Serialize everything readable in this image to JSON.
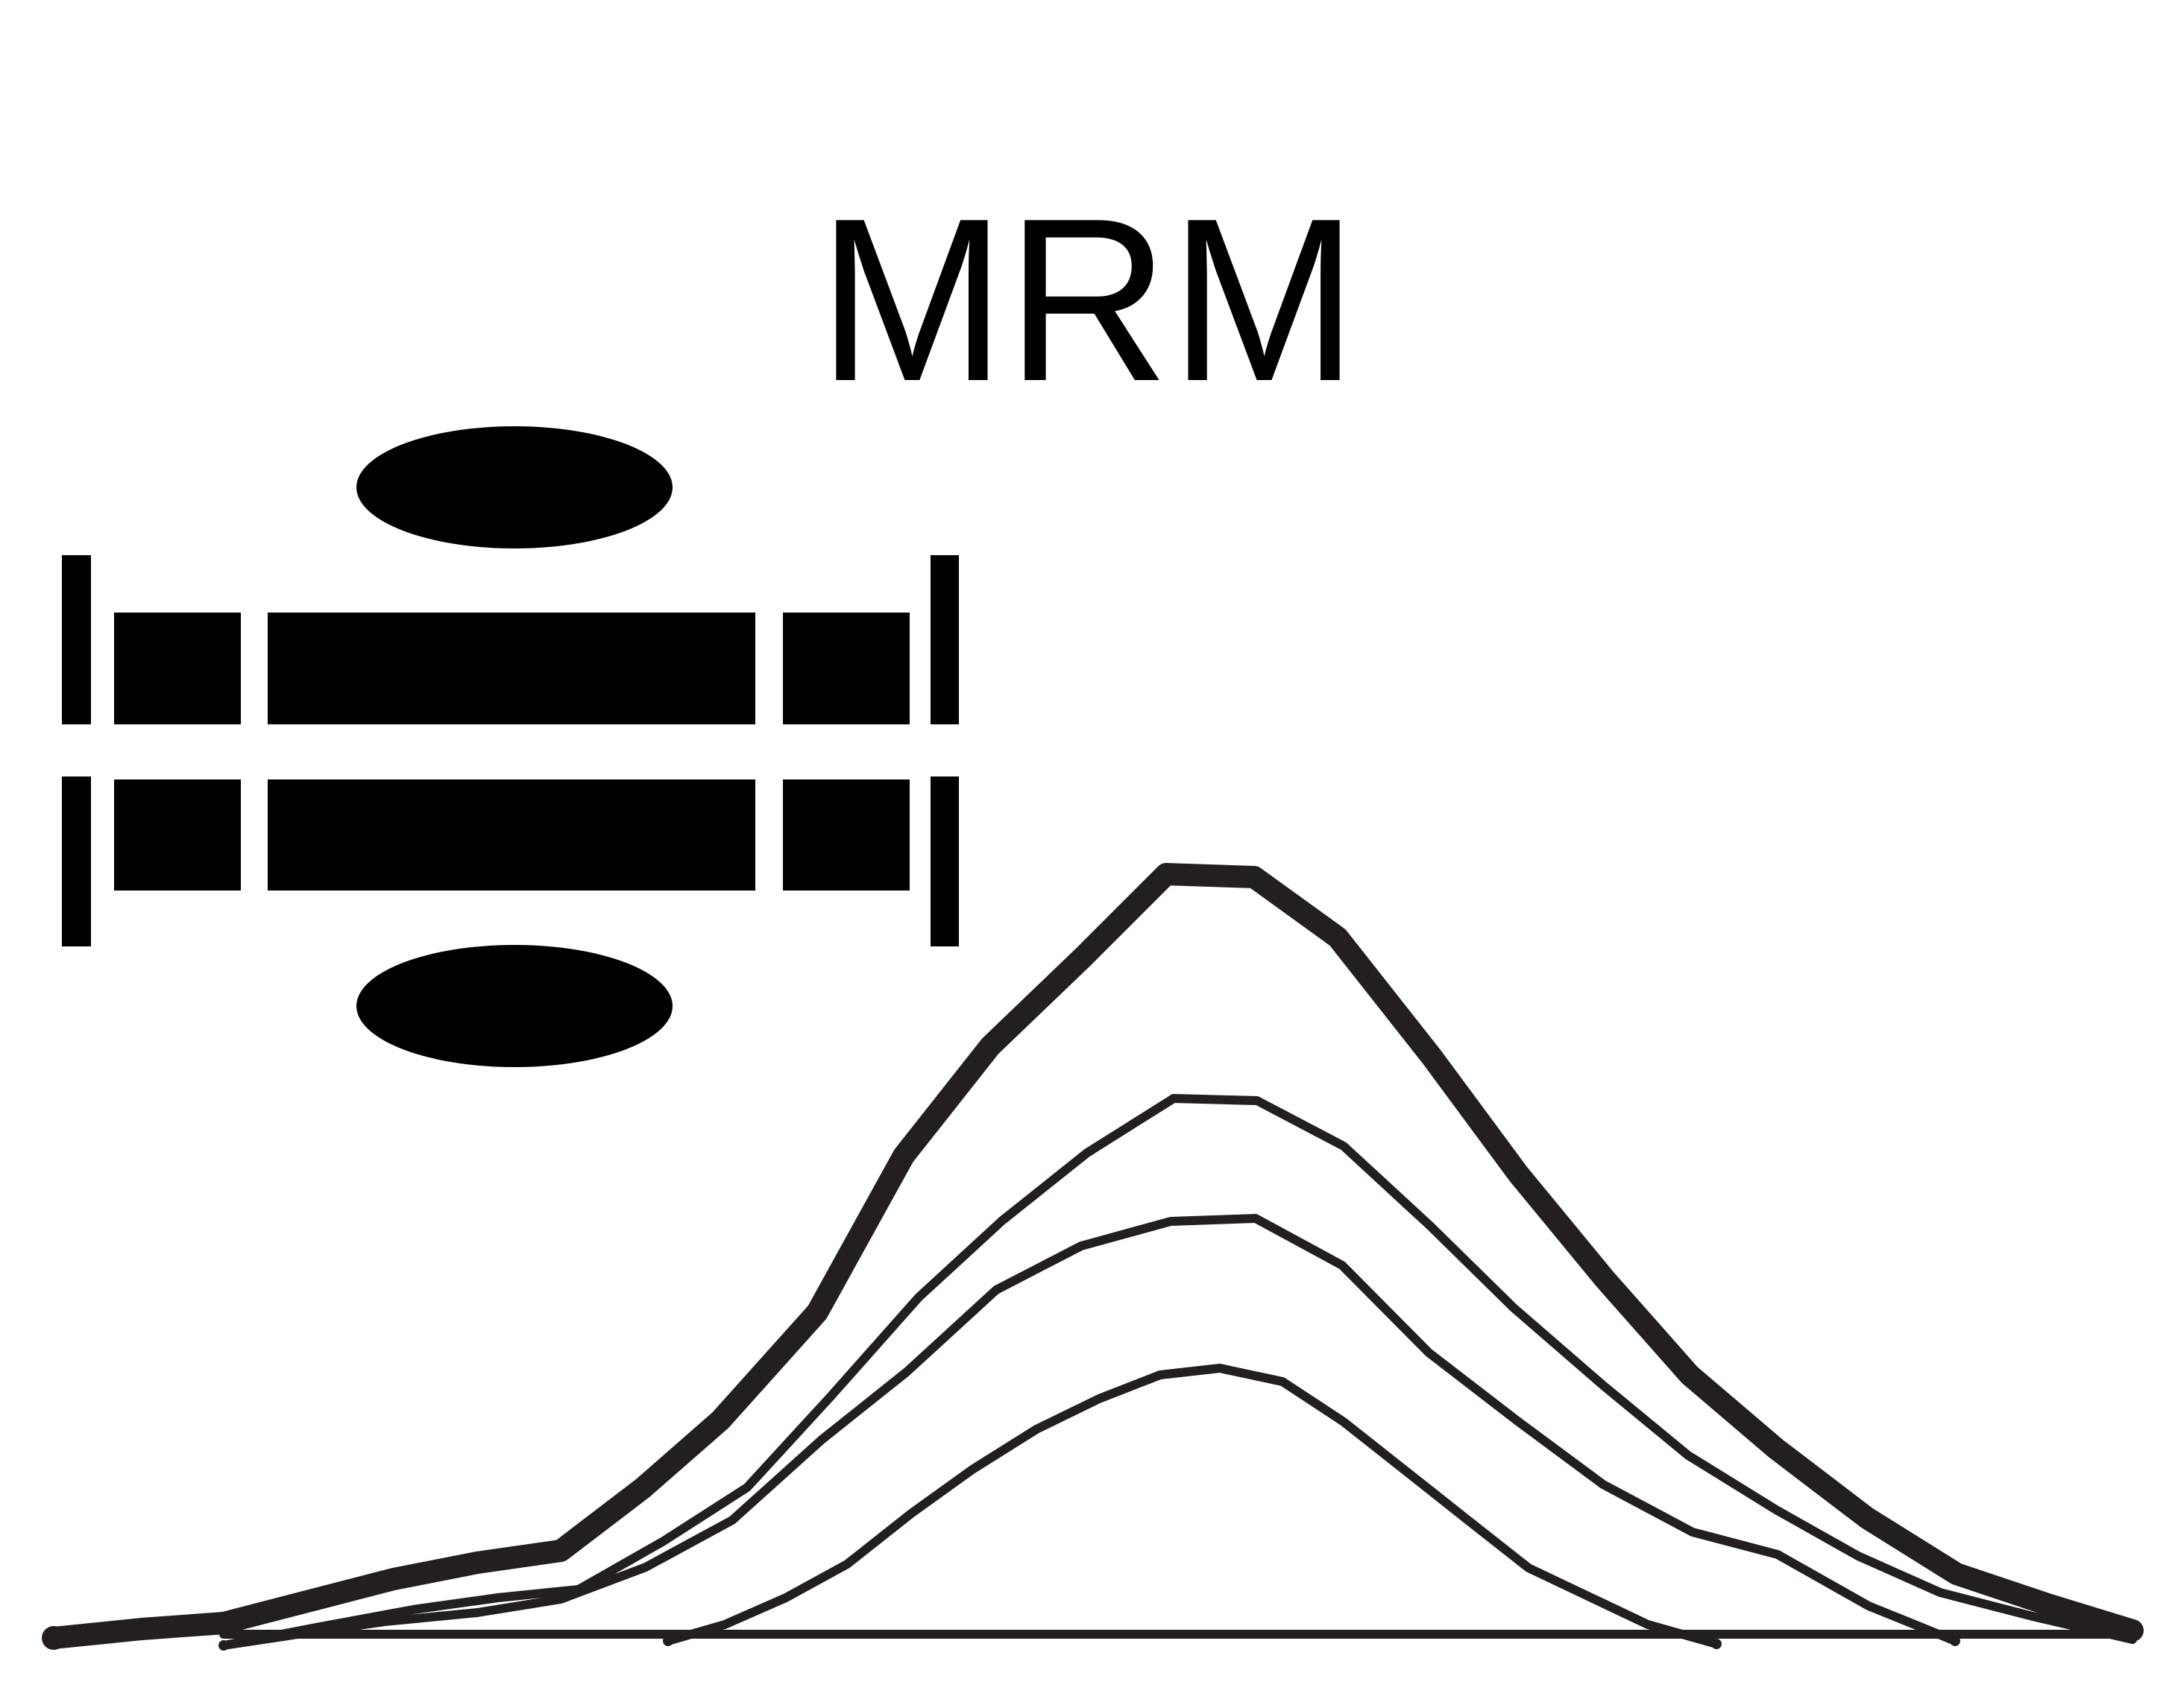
{
  "title": "MRM",
  "colors": {
    "ink": "#000000",
    "curve": "#231f20",
    "background": "#ffffff"
  }
}
